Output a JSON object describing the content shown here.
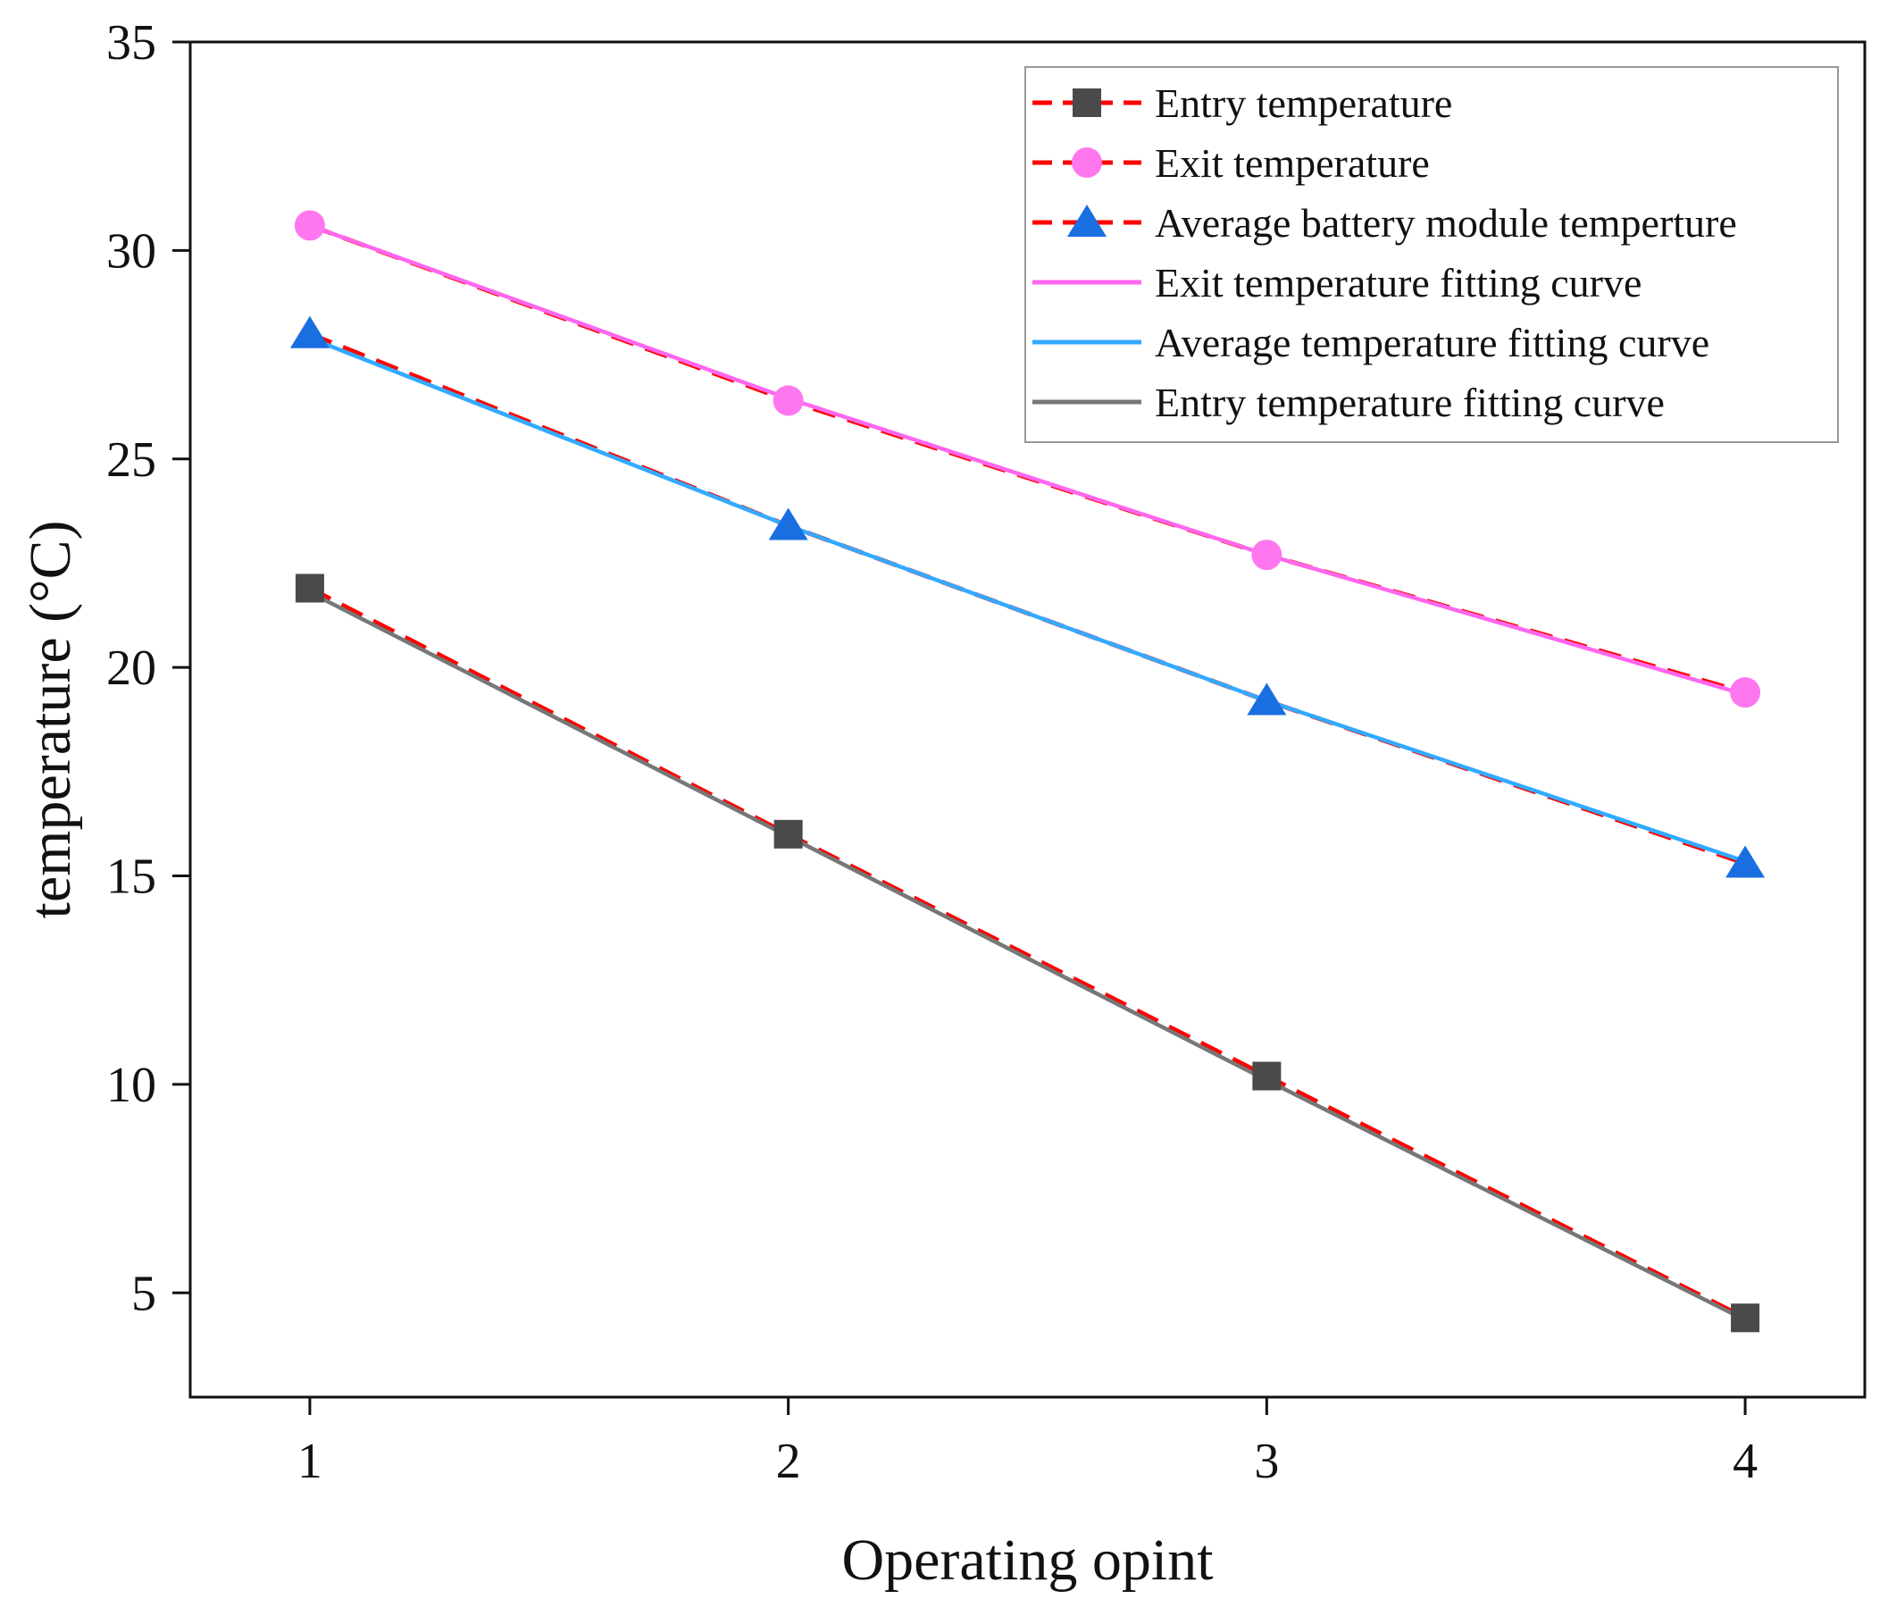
{
  "chart_data": {
    "type": "line",
    "xlabel": "Operating opint",
    "ylabel": "temperature (°C)",
    "x": [
      1,
      2,
      3,
      4
    ],
    "xlim": [
      0.75,
      4.25
    ],
    "ylim": [
      2.5,
      35
    ],
    "xticks": [
      1,
      2,
      3,
      4
    ],
    "yticks": [
      5,
      10,
      15,
      20,
      25,
      30,
      35
    ],
    "grid": false,
    "legend_position": "top-right",
    "series": [
      {
        "name": "Entry temperature",
        "y": [
          21.9,
          16.0,
          10.2,
          4.4
        ],
        "line_color": "#ff0000",
        "line_style": "dashed",
        "marker": "square",
        "marker_color": "#4a4a4a"
      },
      {
        "name": "Exit temperature",
        "y": [
          30.6,
          26.4,
          22.7,
          19.4
        ],
        "line_color": "#ff0000",
        "line_style": "dashed",
        "marker": "circle",
        "marker_color": "#ff77ee"
      },
      {
        "name": "Average battery module temperture",
        "y": [
          28.0,
          23.4,
          19.2,
          15.3
        ],
        "line_color": "#ff0000",
        "line_style": "dashed",
        "marker": "triangle",
        "marker_color": "#1a6fe0"
      },
      {
        "name": "Exit temperature fitting curve",
        "y": [
          30.6,
          26.45,
          22.7,
          19.35
        ],
        "line_color": "#ff66ee",
        "line_style": "solid",
        "marker": "none"
      },
      {
        "name": "Average temperature fitting curve",
        "y": [
          27.9,
          23.4,
          19.2,
          15.35
        ],
        "line_color": "#33aaff",
        "line_style": "solid",
        "marker": "none"
      },
      {
        "name": "Entry temperature fitting curve",
        "y": [
          21.8,
          15.95,
          10.1,
          4.35
        ],
        "line_color": "#777777",
        "line_style": "solid",
        "marker": "none"
      }
    ]
  }
}
